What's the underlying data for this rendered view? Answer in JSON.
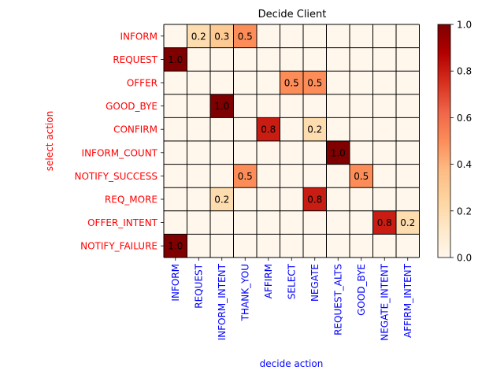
{
  "chart_data": {
    "type": "heatmap",
    "title": "Decide Client",
    "xlabel": "decide action",
    "ylabel": "select action",
    "x_categories": [
      "INFORM",
      "REQUEST",
      "INFORM_INTENT",
      "THANK_YOU",
      "AFFIRM",
      "SELECT",
      "NEGATE",
      "REQUEST_ALTS",
      "GOOD_BYE",
      "NEGATE_INTENT",
      "AFFIRM_INTENT"
    ],
    "y_categories": [
      "INFORM",
      "REQUEST",
      "OFFER",
      "GOOD_BYE",
      "CONFIRM",
      "INFORM_COUNT",
      "NOTIFY_SUCCESS",
      "REQ_MORE",
      "OFFER_INTENT",
      "NOTIFY_FAILURE"
    ],
    "values": [
      [
        0,
        0.2,
        0.3,
        0.5,
        0,
        0,
        0,
        0,
        0,
        0,
        0
      ],
      [
        1.0,
        0,
        0,
        0,
        0,
        0,
        0,
        0,
        0,
        0,
        0
      ],
      [
        0,
        0,
        0,
        0,
        0,
        0.5,
        0.5,
        0,
        0,
        0,
        0
      ],
      [
        0,
        0,
        1.0,
        0,
        0,
        0,
        0,
        0,
        0,
        0,
        0
      ],
      [
        0,
        0,
        0,
        0,
        0.8,
        0,
        0.2,
        0,
        0,
        0,
        0
      ],
      [
        0,
        0,
        0,
        0,
        0,
        0,
        0,
        1.0,
        0,
        0,
        0
      ],
      [
        0,
        0,
        0,
        0.5,
        0,
        0,
        0,
        0,
        0.5,
        0,
        0
      ],
      [
        0,
        0,
        0.2,
        0,
        0,
        0,
        0.8,
        0,
        0,
        0,
        0
      ],
      [
        0,
        0,
        0,
        0,
        0,
        0,
        0,
        0,
        0,
        0.8,
        0.2
      ],
      [
        1.0,
        0,
        0,
        0,
        0,
        0,
        0,
        0,
        0,
        0,
        0
      ]
    ],
    "colorbar": {
      "range": [
        0.0,
        1.0
      ],
      "ticks": [
        "0.0",
        "0.2",
        "0.4",
        "0.6",
        "0.8",
        "1.0"
      ],
      "colormap": "OrRd"
    },
    "x_tick_color": "#0000ff",
    "y_tick_color": "#ff0000",
    "xlabel_color": "#0000ff",
    "ylabel_color": "#ff0000"
  }
}
